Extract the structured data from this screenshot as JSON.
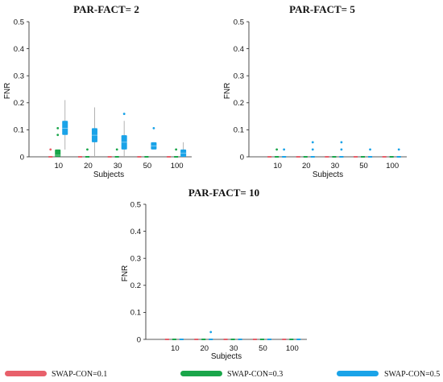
{
  "colors": {
    "SWAP-CON=0.1": "#e8606b",
    "SWAP-CON=0.3": "#1aa64a",
    "SWAP-CON=0.5": "#1aa3e8",
    "whisker": "#aaaaaa"
  },
  "legend": {
    "items": [
      {
        "label": "SWAP-CON=0.1",
        "color": "#e8606b"
      },
      {
        "label": "SWAP-CON=0.3",
        "color": "#1aa64a"
      },
      {
        "label": "SWAP-CON=0.5",
        "color": "#1aa3e8"
      }
    ]
  },
  "chart_data": [
    {
      "type": "box",
      "title": "PAR-FACT= 2",
      "xlabel": "Subjects",
      "ylabel": "FNR",
      "categories": [
        "10",
        "20",
        "30",
        "50",
        "100"
      ],
      "ylim": [
        0,
        0.5
      ],
      "yticks": [
        "0",
        "0.1",
        "0.2",
        "0.3",
        "0.4",
        "0.5"
      ],
      "series": [
        {
          "name": "SWAP-CON=0.1",
          "boxes": [
            {
              "q1": 0,
              "med": 0,
              "q3": 0,
              "lo": 0,
              "hi": 0,
              "out": [
                0.027
              ]
            },
            {
              "q1": 0,
              "med": 0,
              "q3": 0,
              "lo": 0,
              "hi": 0,
              "out": []
            },
            {
              "q1": 0,
              "med": 0,
              "q3": 0,
              "lo": 0,
              "hi": 0,
              "out": []
            },
            {
              "q1": 0,
              "med": 0,
              "q3": 0,
              "lo": 0,
              "hi": 0,
              "out": []
            },
            {
              "q1": 0,
              "med": 0,
              "q3": 0,
              "lo": 0,
              "hi": 0,
              "out": []
            }
          ]
        },
        {
          "name": "SWAP-CON=0.3",
          "boxes": [
            {
              "q1": 0,
              "med": 0.006,
              "q3": 0.027,
              "lo": 0,
              "hi": 0.027,
              "out": [
                0.081,
                0.106
              ]
            },
            {
              "q1": 0,
              "med": 0,
              "q3": 0,
              "lo": 0,
              "hi": 0,
              "out": [
                0.027
              ]
            },
            {
              "q1": 0,
              "med": 0,
              "q3": 0,
              "lo": 0,
              "hi": 0,
              "out": [
                0.027
              ]
            },
            {
              "q1": 0,
              "med": 0,
              "q3": 0,
              "lo": 0,
              "hi": 0,
              "out": []
            },
            {
              "q1": 0,
              "med": 0,
              "q3": 0,
              "lo": 0,
              "hi": 0,
              "out": [
                0.027
              ]
            }
          ]
        },
        {
          "name": "SWAP-CON=0.5",
          "boxes": [
            {
              "q1": 0.081,
              "med": 0.106,
              "q3": 0.133,
              "lo": 0.027,
              "hi": 0.21,
              "out": []
            },
            {
              "q1": 0.054,
              "med": 0.08,
              "q3": 0.106,
              "lo": 0,
              "hi": 0.183,
              "out": []
            },
            {
              "q1": 0.027,
              "med": 0.054,
              "q3": 0.08,
              "lo": 0,
              "hi": 0.133,
              "out": [
                0.159
              ]
            },
            {
              "q1": 0.027,
              "med": 0.04,
              "q3": 0.054,
              "lo": 0.027,
              "hi": 0.054,
              "out": [
                0.106
              ]
            },
            {
              "q1": 0,
              "med": 0.014,
              "q3": 0.027,
              "lo": 0,
              "hi": 0.054,
              "out": []
            }
          ]
        }
      ]
    },
    {
      "type": "box",
      "title": "PAR-FACT= 5",
      "xlabel": "Subjects",
      "ylabel": "FNR",
      "categories": [
        "10",
        "20",
        "30",
        "50",
        "100"
      ],
      "ylim": [
        0,
        0.5
      ],
      "yticks": [
        "0",
        "0.1",
        "0.2",
        "0.3",
        "0.4",
        "0.5"
      ],
      "series": [
        {
          "name": "SWAP-CON=0.1",
          "boxes": [
            {
              "q1": 0,
              "med": 0,
              "q3": 0,
              "lo": 0,
              "hi": 0,
              "out": []
            },
            {
              "q1": 0,
              "med": 0,
              "q3": 0,
              "lo": 0,
              "hi": 0,
              "out": []
            },
            {
              "q1": 0,
              "med": 0,
              "q3": 0,
              "lo": 0,
              "hi": 0,
              "out": []
            },
            {
              "q1": 0,
              "med": 0,
              "q3": 0,
              "lo": 0,
              "hi": 0,
              "out": []
            },
            {
              "q1": 0,
              "med": 0,
              "q3": 0,
              "lo": 0,
              "hi": 0,
              "out": []
            }
          ]
        },
        {
          "name": "SWAP-CON=0.3",
          "boxes": [
            {
              "q1": 0,
              "med": 0,
              "q3": 0,
              "lo": 0,
              "hi": 0,
              "out": [
                0.027
              ]
            },
            {
              "q1": 0,
              "med": 0,
              "q3": 0,
              "lo": 0,
              "hi": 0,
              "out": []
            },
            {
              "q1": 0,
              "med": 0,
              "q3": 0,
              "lo": 0,
              "hi": 0,
              "out": []
            },
            {
              "q1": 0,
              "med": 0,
              "q3": 0,
              "lo": 0,
              "hi": 0,
              "out": []
            },
            {
              "q1": 0,
              "med": 0,
              "q3": 0,
              "lo": 0,
              "hi": 0,
              "out": []
            }
          ]
        },
        {
          "name": "SWAP-CON=0.5",
          "boxes": [
            {
              "q1": 0,
              "med": 0,
              "q3": 0,
              "lo": 0,
              "hi": 0,
              "out": [
                0.027
              ]
            },
            {
              "q1": 0,
              "med": 0,
              "q3": 0,
              "lo": 0,
              "hi": 0,
              "out": [
                0.027,
                0.054
              ]
            },
            {
              "q1": 0,
              "med": 0,
              "q3": 0,
              "lo": 0,
              "hi": 0,
              "out": [
                0.027,
                0.054
              ]
            },
            {
              "q1": 0,
              "med": 0,
              "q3": 0,
              "lo": 0,
              "hi": 0,
              "out": [
                0.027
              ]
            },
            {
              "q1": 0,
              "med": 0,
              "q3": 0,
              "lo": 0,
              "hi": 0,
              "out": [
                0.027
              ]
            }
          ]
        }
      ]
    },
    {
      "type": "box",
      "title": "PAR-FACT= 10",
      "xlabel": "Subjects",
      "ylabel": "FNR",
      "categories": [
        "10",
        "20",
        "30",
        "50",
        "100"
      ],
      "ylim": [
        0,
        0.5
      ],
      "yticks": [
        "0",
        "0.1",
        "0.2",
        "0.3",
        "0.4",
        "0.5"
      ],
      "series": [
        {
          "name": "SWAP-CON=0.1",
          "boxes": [
            {
              "q1": 0,
              "med": 0,
              "q3": 0,
              "lo": 0,
              "hi": 0,
              "out": []
            },
            {
              "q1": 0,
              "med": 0,
              "q3": 0,
              "lo": 0,
              "hi": 0,
              "out": []
            },
            {
              "q1": 0,
              "med": 0,
              "q3": 0,
              "lo": 0,
              "hi": 0,
              "out": []
            },
            {
              "q1": 0,
              "med": 0,
              "q3": 0,
              "lo": 0,
              "hi": 0,
              "out": []
            },
            {
              "q1": 0,
              "med": 0,
              "q3": 0,
              "lo": 0,
              "hi": 0,
              "out": []
            }
          ]
        },
        {
          "name": "SWAP-CON=0.3",
          "boxes": [
            {
              "q1": 0,
              "med": 0,
              "q3": 0,
              "lo": 0,
              "hi": 0,
              "out": []
            },
            {
              "q1": 0,
              "med": 0,
              "q3": 0,
              "lo": 0,
              "hi": 0,
              "out": []
            },
            {
              "q1": 0,
              "med": 0,
              "q3": 0,
              "lo": 0,
              "hi": 0,
              "out": []
            },
            {
              "q1": 0,
              "med": 0,
              "q3": 0,
              "lo": 0,
              "hi": 0,
              "out": []
            },
            {
              "q1": 0,
              "med": 0,
              "q3": 0,
              "lo": 0,
              "hi": 0,
              "out": []
            }
          ]
        },
        {
          "name": "SWAP-CON=0.5",
          "boxes": [
            {
              "q1": 0,
              "med": 0,
              "q3": 0,
              "lo": 0,
              "hi": 0,
              "out": []
            },
            {
              "q1": 0,
              "med": 0,
              "q3": 0,
              "lo": 0,
              "hi": 0,
              "out": [
                0.027
              ]
            },
            {
              "q1": 0,
              "med": 0,
              "q3": 0,
              "lo": 0,
              "hi": 0,
              "out": []
            },
            {
              "q1": 0,
              "med": 0,
              "q3": 0,
              "lo": 0,
              "hi": 0,
              "out": []
            },
            {
              "q1": 0,
              "med": 0,
              "q3": 0,
              "lo": 0,
              "hi": 0,
              "out": []
            }
          ]
        }
      ]
    }
  ]
}
